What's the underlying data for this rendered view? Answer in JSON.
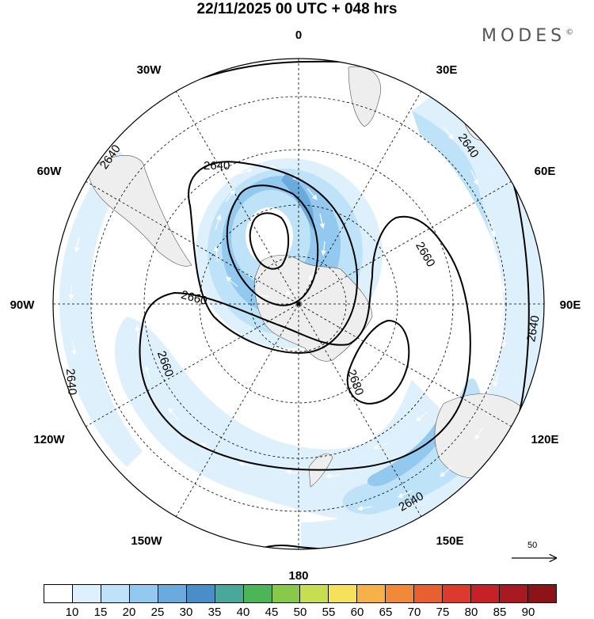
{
  "title": "22/11/2025  00 UTC  + 048 hrs",
  "brand": "MODES",
  "brand_mark": "©",
  "longitude_labels": [
    "0",
    "30E",
    "60E",
    "90E",
    "120E",
    "150E",
    "180",
    "150W",
    "120W",
    "90W",
    "60W",
    "30W"
  ],
  "contour_labels": [
    "2640",
    "2640",
    "2640",
    "2640",
    "2640",
    "2640",
    "2660",
    "2660",
    "2660",
    "2680"
  ],
  "reference_vector": {
    "label": "50",
    "value": 50
  },
  "colorbar": {
    "colors": [
      "#ffffff",
      "#def0fb",
      "#bee3f8",
      "#93c9ee",
      "#6aaadc",
      "#4a8ec8",
      "#4aa89a",
      "#4cb558",
      "#88c84a",
      "#c6de50",
      "#f5e25a",
      "#f6b248",
      "#f08a38",
      "#e86030",
      "#dc3a2c",
      "#c42226",
      "#a81a22",
      "#8c1418"
    ],
    "tick_labels": [
      "10",
      "15",
      "20",
      "25",
      "30",
      "35",
      "40",
      "45",
      "50",
      "55",
      "60",
      "65",
      "70",
      "75",
      "80",
      "85",
      "90"
    ]
  },
  "colors": {
    "map_border": "#000000",
    "land": "#eeeeee",
    "grid": "#000000",
    "arrow": "#ffffff"
  }
}
